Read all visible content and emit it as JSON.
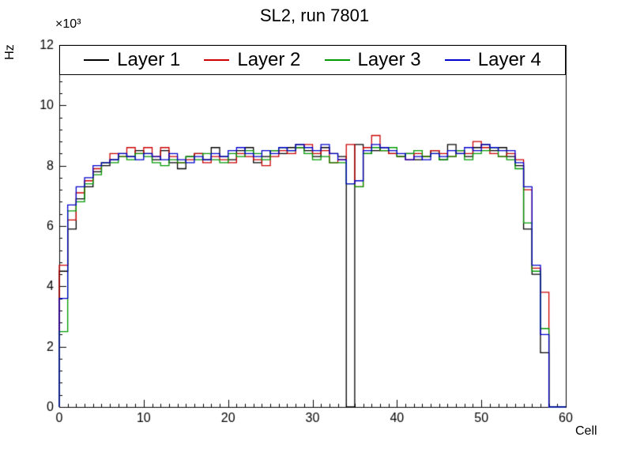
{
  "figure": {
    "background": "#ffffff"
  },
  "chart_data": {
    "type": "line",
    "variant": "step-histogram",
    "title": "SL2, run 7801",
    "xlabel": "Cell",
    "ylabel": "Hz",
    "y_scale": "×10³",
    "xlim": [
      0,
      60
    ],
    "ylim": [
      0,
      12
    ],
    "xticks": [
      0,
      10,
      20,
      30,
      40,
      50,
      60
    ],
    "yticks": [
      0,
      2,
      4,
      6,
      8,
      10,
      12
    ],
    "x_minor_step": 1,
    "y_minor_step": 0.4,
    "bin_width": 1,
    "grid": false,
    "legend_position": "top-inside",
    "series": [
      {
        "name": "Layer 1",
        "color": "#000000",
        "values": [
          4.5,
          5.9,
          6.9,
          7.3,
          7.8,
          8.0,
          8.2,
          8.4,
          8.3,
          8.5,
          8.4,
          8.2,
          8.5,
          8.1,
          7.9,
          8.3,
          8.4,
          8.2,
          8.6,
          8.3,
          8.2,
          8.5,
          8.6,
          8.1,
          8.3,
          8.5,
          8.4,
          8.6,
          8.7,
          8.5,
          8.3,
          8.6,
          8.4,
          8.3,
          0.0,
          8.7,
          8.4,
          8.5,
          8.6,
          8.4,
          8.3,
          8.4,
          8.2,
          8.3,
          8.5,
          8.2,
          8.7,
          8.4,
          8.3,
          8.6,
          8.7,
          8.5,
          8.6,
          8.3,
          8.0,
          5.9,
          4.4,
          1.8,
          0.0,
          0.0
        ]
      },
      {
        "name": "Layer 2",
        "color": "#cc0000",
        "values": [
          4.7,
          6.2,
          7.1,
          7.5,
          7.9,
          8.1,
          8.4,
          8.3,
          8.6,
          8.4,
          8.6,
          8.3,
          8.6,
          8.3,
          8.1,
          8.2,
          8.4,
          8.1,
          8.3,
          8.2,
          8.1,
          8.4,
          8.3,
          8.2,
          8.0,
          8.3,
          8.5,
          8.4,
          8.6,
          8.7,
          8.4,
          8.5,
          8.1,
          8.2,
          8.7,
          7.3,
          8.6,
          9.0,
          8.5,
          8.4,
          8.3,
          8.2,
          8.4,
          8.3,
          8.5,
          8.4,
          8.3,
          8.5,
          8.4,
          8.8,
          8.6,
          8.4,
          8.3,
          8.4,
          8.2,
          7.2,
          4.6,
          3.8,
          0.0,
          0.0
        ]
      },
      {
        "name": "Layer 3",
        "color": "#009900",
        "values": [
          2.5,
          6.5,
          6.8,
          7.4,
          7.7,
          8.1,
          8.1,
          8.3,
          8.2,
          8.4,
          8.3,
          8.1,
          8.0,
          8.2,
          8.1,
          8.3,
          8.2,
          8.4,
          8.2,
          8.1,
          8.4,
          8.3,
          8.5,
          8.4,
          8.2,
          8.5,
          8.6,
          8.5,
          8.6,
          8.4,
          8.2,
          8.3,
          8.1,
          8.1,
          7.4,
          7.3,
          8.4,
          8.6,
          8.5,
          8.6,
          8.3,
          8.4,
          8.5,
          8.3,
          8.4,
          8.2,
          8.3,
          8.5,
          8.2,
          8.4,
          8.5,
          8.6,
          8.3,
          8.2,
          7.9,
          6.1,
          4.5,
          2.6,
          0.0,
          0.0
        ]
      },
      {
        "name": "Layer 4",
        "color": "#0000cc",
        "values": [
          3.6,
          6.7,
          7.3,
          7.6,
          8.0,
          8.1,
          8.2,
          8.4,
          8.3,
          8.2,
          8.4,
          8.3,
          8.2,
          8.4,
          8.2,
          8.1,
          8.3,
          8.2,
          8.4,
          8.3,
          8.5,
          8.6,
          8.4,
          8.3,
          8.5,
          8.4,
          8.6,
          8.5,
          8.7,
          8.6,
          8.5,
          8.7,
          8.4,
          8.2,
          7.4,
          7.5,
          8.5,
          8.7,
          8.6,
          8.5,
          8.4,
          8.2,
          8.3,
          8.2,
          8.4,
          8.3,
          8.5,
          8.4,
          8.6,
          8.5,
          8.7,
          8.6,
          8.5,
          8.5,
          8.1,
          7.3,
          4.7,
          2.4,
          0.0,
          0.0
        ]
      }
    ]
  }
}
